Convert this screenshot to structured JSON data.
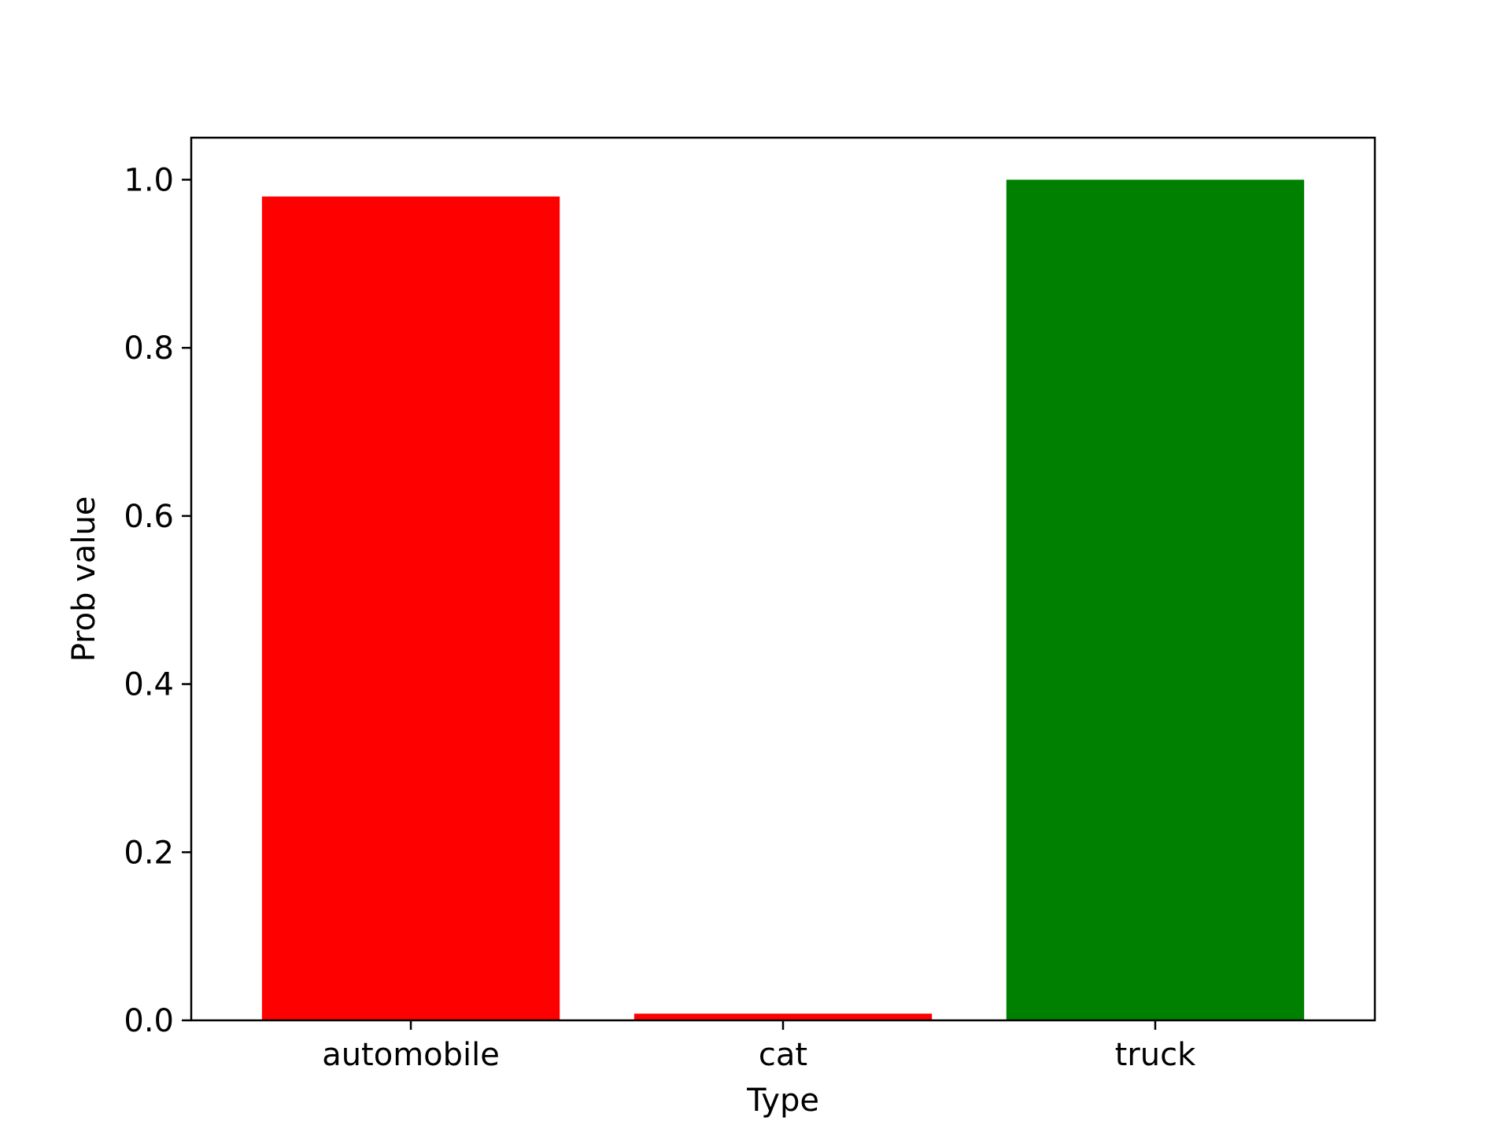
{
  "chart_data": {
    "type": "bar",
    "title": "",
    "xlabel": "Type",
    "ylabel": "Prob value",
    "categories": [
      "automobile",
      "cat",
      "truck"
    ],
    "values": [
      0.98,
      0.008,
      1.0
    ],
    "colors": [
      "#ff0000",
      "#ff0000",
      "#008000"
    ],
    "ylim": [
      0,
      1.05
    ],
    "yticks": [
      "0.0",
      "0.2",
      "0.4",
      "0.6",
      "0.8",
      "1.0"
    ],
    "grid": false,
    "legend": "none"
  }
}
